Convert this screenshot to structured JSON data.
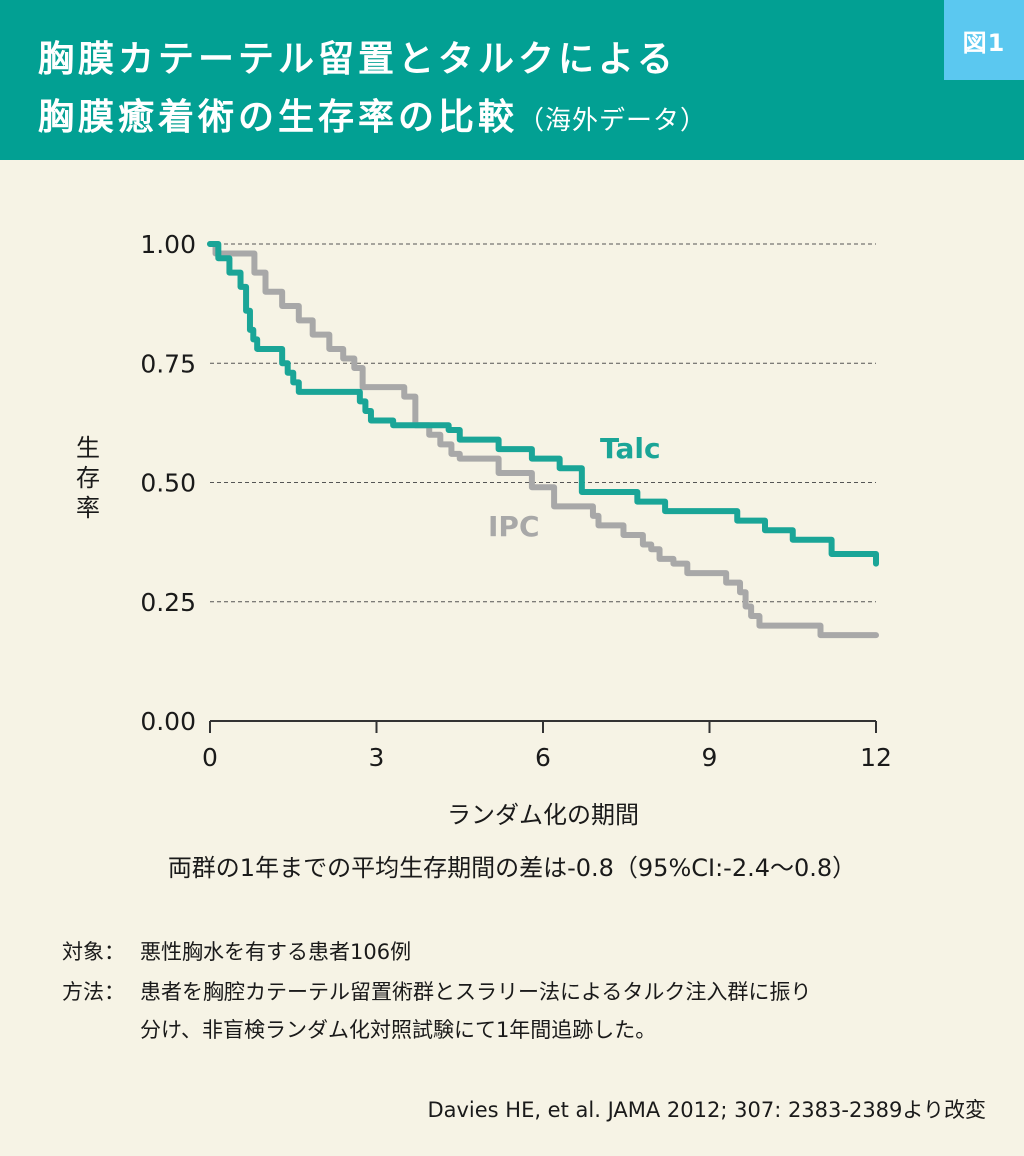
{
  "header": {
    "title_line1": "胸膜カテーテル留置とタルクによる",
    "title_line2": "胸膜癒着術の生存率の比較",
    "title_sub": "（海外データ）",
    "badge": "図1"
  },
  "chart_data": {
    "type": "line",
    "title": "",
    "xlabel": "ランダム化の期間",
    "ylabel": "生存率",
    "xlim": [
      0,
      12
    ],
    "ylim": [
      0,
      1
    ],
    "xticks": [
      0,
      3,
      6,
      9,
      12
    ],
    "xtick_labels": [
      "0",
      "3",
      "6",
      "9",
      "12"
    ],
    "yticks": [
      0,
      0.25,
      0.5,
      0.75,
      1.0
    ],
    "ytick_labels": [
      "0.00",
      "0.25",
      "0.50",
      "0.75",
      "1.00"
    ],
    "grid": "horizontal dashed",
    "series": [
      {
        "name": "Talc",
        "color": "#1aa597",
        "step": true,
        "x": [
          0,
          0.15,
          0.35,
          0.55,
          0.65,
          0.72,
          0.78,
          0.85,
          0.95,
          1.3,
          1.4,
          1.5,
          1.6,
          1.8,
          2.7,
          2.8,
          2.9,
          3.3,
          4.3,
          4.5,
          5.2,
          5.8,
          6.3,
          6.7,
          7.7,
          8.2,
          9.5,
          10.0,
          10.5,
          11.2,
          12.0
        ],
        "y": [
          1.0,
          0.97,
          0.94,
          0.91,
          0.86,
          0.82,
          0.8,
          0.78,
          0.78,
          0.75,
          0.73,
          0.71,
          0.69,
          0.69,
          0.67,
          0.65,
          0.63,
          0.62,
          0.61,
          0.59,
          0.57,
          0.55,
          0.53,
          0.48,
          0.46,
          0.44,
          0.42,
          0.4,
          0.38,
          0.35,
          0.33
        ]
      },
      {
        "name": "IPC",
        "color": "#a8a8a8",
        "step": true,
        "x": [
          0,
          0.1,
          0.4,
          0.8,
          1.0,
          1.3,
          1.6,
          1.85,
          2.15,
          2.4,
          2.6,
          2.75,
          3.1,
          3.5,
          3.7,
          3.95,
          4.15,
          4.35,
          4.5,
          4.7,
          5.2,
          5.8,
          6.2,
          6.9,
          7.0,
          7.45,
          7.8,
          7.95,
          8.1,
          8.35,
          8.6,
          9.3,
          9.55,
          9.65,
          9.75,
          9.9,
          11.0,
          12.0
        ],
        "y": [
          1.0,
          0.98,
          0.98,
          0.94,
          0.9,
          0.87,
          0.84,
          0.81,
          0.78,
          0.76,
          0.74,
          0.7,
          0.7,
          0.68,
          0.62,
          0.6,
          0.58,
          0.56,
          0.55,
          0.55,
          0.52,
          0.49,
          0.45,
          0.43,
          0.41,
          0.39,
          0.37,
          0.36,
          0.34,
          0.33,
          0.31,
          0.29,
          0.27,
          0.24,
          0.22,
          0.2,
          0.18,
          0.18
        ]
      }
    ]
  },
  "note": "両群の1年までの平均生存期間の差は-0.8（95%CI:-2.4～0.8）",
  "method": {
    "target_label": "対象：",
    "target_text": "悪性胸水を有する患者106例",
    "method_label": "方法：",
    "method_text1": "患者を胸腔カテーテル留置術群とスラリー法によるタルク注入群に振り",
    "method_text2": "分け、非盲検ランダム化対照試験にて1年間追跡した。"
  },
  "citation": "Davies HE, et al. JAMA 2012; 307: 2383-2389より改変"
}
